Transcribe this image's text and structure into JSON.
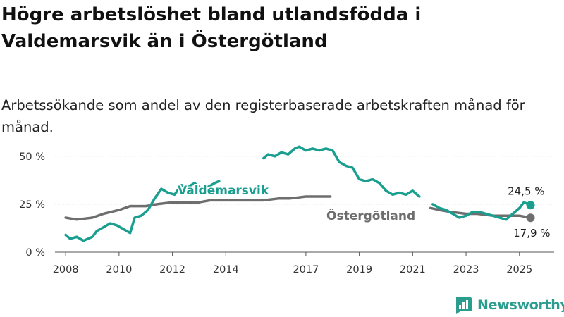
{
  "header": {
    "title": "Högre arbetslöshet bland utlandsfödda i Valdemarsvik än i Östergötland",
    "subtitle": "Arbetssökande som andel av den registerbaserade arbetskraften månad för månad."
  },
  "logo": {
    "text": "Newsworthy",
    "icon": "newsworthy-bar-chart-icon",
    "color": "#2a9d8f"
  },
  "chart_data": {
    "type": "line",
    "title": "",
    "xlabel": "",
    "ylabel": "",
    "x_ticks": [
      "2008",
      "2010",
      "2012",
      "2014",
      "2017",
      "2019",
      "2021",
      "2023",
      "2025"
    ],
    "y_ticks": [
      "0 %",
      "25 %",
      "50 %"
    ],
    "ylim": [
      0,
      58
    ],
    "grid": "horizontal",
    "legend": "direct labels on lines",
    "series": [
      {
        "name": "Valdemarsvik",
        "color": "#1a9e8f",
        "end_label": "24,5 %",
        "points": [
          [
            "2008-01",
            9
          ],
          [
            "2008-03",
            7
          ],
          [
            "2008-06",
            8
          ],
          [
            "2008-09",
            6
          ],
          [
            "2009-01",
            8
          ],
          [
            "2009-03",
            11
          ],
          [
            "2009-06",
            13
          ],
          [
            "2009-09",
            15
          ],
          [
            "2009-12",
            14
          ],
          [
            "2010-03",
            12
          ],
          [
            "2010-06",
            10
          ],
          [
            "2010-08",
            18
          ],
          [
            "2010-11",
            19
          ],
          [
            "2011-02",
            22
          ],
          [
            "2011-05",
            28
          ],
          [
            "2011-08",
            33
          ],
          [
            "2011-11",
            31
          ],
          [
            "2012-02",
            30
          ],
          [
            "2012-05",
            35
          ],
          [
            "2012-08",
            34
          ],
          [
            "2012-11",
            36
          ],
          [
            "2013-02",
            33
          ],
          [
            "2013-05",
            34
          ],
          [
            "2013-08",
            36
          ],
          [
            "2013-10",
            37
          ],
          null,
          [
            "2015-06",
            49
          ],
          [
            "2015-08",
            51
          ],
          [
            "2015-11",
            50
          ],
          [
            "2016-02",
            52
          ],
          [
            "2016-05",
            51
          ],
          [
            "2016-08",
            54
          ],
          [
            "2016-10",
            55
          ],
          [
            "2017-01",
            53
          ],
          [
            "2017-04",
            54
          ],
          [
            "2017-07",
            53
          ],
          [
            "2017-10",
            54
          ],
          [
            "2018-01",
            53
          ],
          [
            "2018-04",
            47
          ],
          [
            "2018-07",
            45
          ],
          [
            "2018-10",
            44
          ],
          [
            "2019-01",
            38
          ],
          [
            "2019-04",
            37
          ],
          [
            "2019-07",
            38
          ],
          [
            "2019-10",
            36
          ],
          [
            "2020-01",
            32
          ],
          [
            "2020-04",
            30
          ],
          [
            "2020-07",
            31
          ],
          [
            "2020-10",
            30
          ],
          [
            "2021-01",
            32
          ],
          [
            "2021-04",
            29
          ],
          null,
          [
            "2021-10",
            25
          ],
          [
            "2022-01",
            23
          ],
          [
            "2022-04",
            22
          ],
          [
            "2022-07",
            20
          ],
          [
            "2022-10",
            18
          ],
          [
            "2023-01",
            19
          ],
          [
            "2023-04",
            21
          ],
          [
            "2023-07",
            21
          ],
          [
            "2023-10",
            20
          ],
          [
            "2024-01",
            19
          ],
          [
            "2024-04",
            18
          ],
          [
            "2024-07",
            17
          ],
          [
            "2024-10",
            20
          ],
          [
            "2025-01",
            23
          ],
          [
            "2025-03",
            26
          ],
          [
            "2025-06",
            24.5
          ]
        ]
      },
      {
        "name": "Östergötland",
        "color": "#6e6e6e",
        "end_label": "17,9 %",
        "points": [
          [
            "2008-01",
            18
          ],
          [
            "2008-06",
            17
          ],
          [
            "2009-01",
            18
          ],
          [
            "2009-06",
            20
          ],
          [
            "2010-01",
            22
          ],
          [
            "2010-06",
            24
          ],
          [
            "2011-01",
            24
          ],
          [
            "2011-06",
            25
          ],
          [
            "2012-01",
            26
          ],
          [
            "2012-06",
            26
          ],
          [
            "2013-01",
            26
          ],
          [
            "2013-06",
            27
          ],
          [
            "2014-01",
            27
          ],
          [
            "2014-06",
            27
          ],
          [
            "2015-01",
            27
          ],
          [
            "2015-06",
            27
          ],
          [
            "2016-01",
            28
          ],
          [
            "2016-06",
            28
          ],
          [
            "2017-01",
            29
          ],
          [
            "2017-06",
            29
          ],
          [
            "2017-12",
            29
          ],
          null,
          [
            "2021-09",
            23
          ],
          [
            "2022-01",
            22
          ],
          [
            "2022-06",
            21
          ],
          [
            "2023-01",
            20
          ],
          [
            "2023-06",
            20
          ],
          [
            "2024-01",
            19
          ],
          [
            "2024-06",
            19
          ],
          [
            "2025-01",
            19
          ],
          [
            "2025-06",
            17.9
          ]
        ]
      }
    ]
  }
}
